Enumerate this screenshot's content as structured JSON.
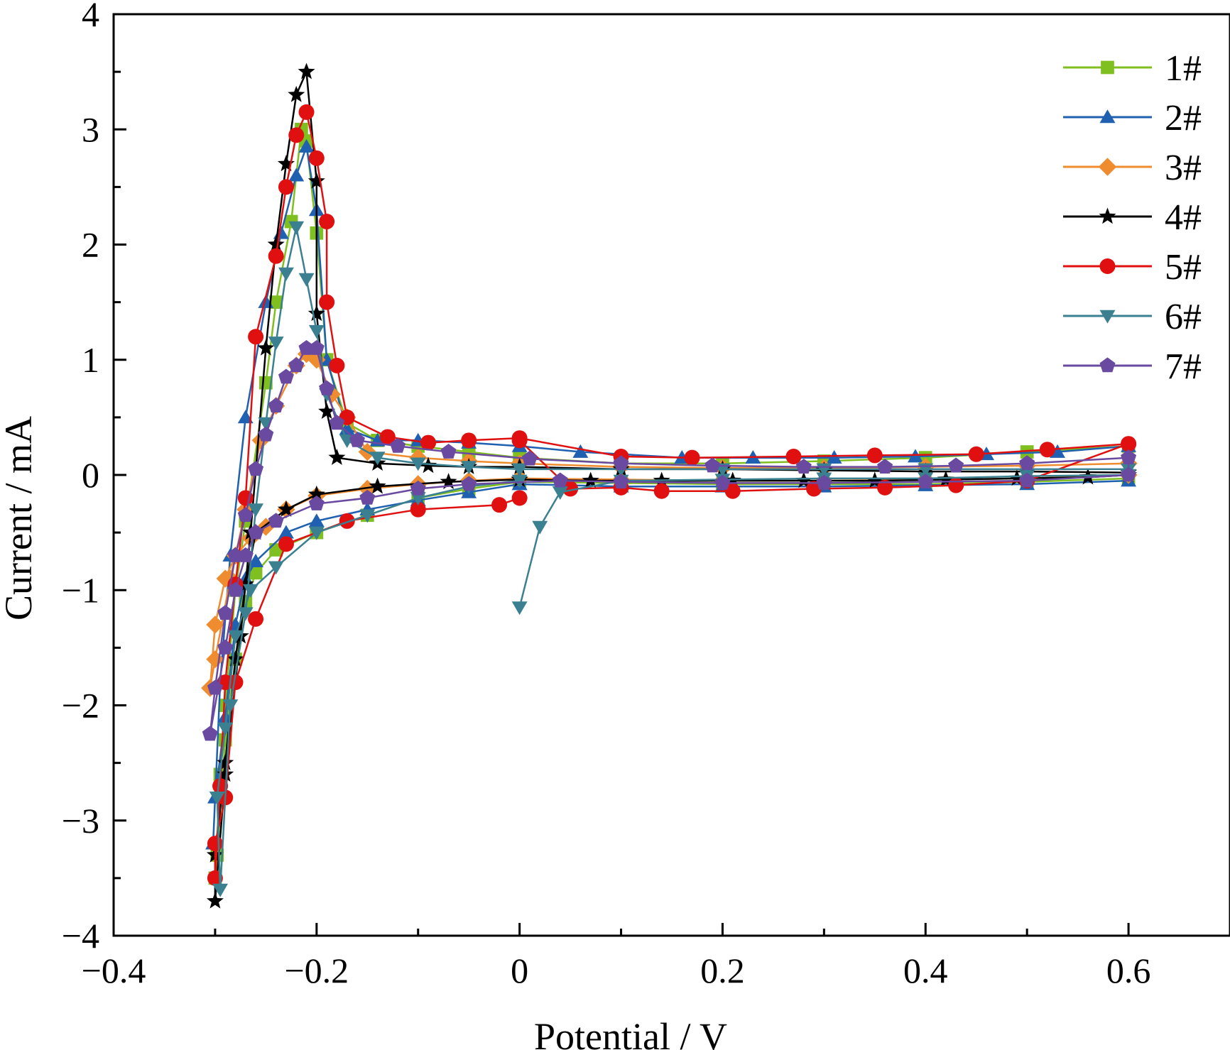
{
  "chart_data": {
    "type": "line",
    "title": "",
    "xlabel": "Potential / V",
    "ylabel": "Current / mA",
    "xlim": [
      -0.4,
      0.7
    ],
    "ylim": [
      -4,
      4
    ],
    "x_ticks": [
      -0.4,
      -0.2,
      0,
      0.2,
      0.4,
      0.6
    ],
    "x_tick_labels": [
      "−0.4",
      "−0.2",
      "0",
      "0.2",
      "0.4",
      "0.6"
    ],
    "y_ticks": [
      -4,
      -3,
      -2,
      -1,
      0,
      1,
      2,
      3,
      4
    ],
    "y_tick_labels": [
      "−4",
      "−3",
      "−2",
      "−1",
      "0",
      "1",
      "2",
      "3",
      "4"
    ],
    "grid": false,
    "legend_position": "top-right",
    "series": [
      {
        "name": "1#",
        "color": "#7fbf1f",
        "marker": "square",
        "x": [
          0.0,
          0.1,
          0.2,
          0.3,
          0.4,
          0.5,
          0.6,
          0.6,
          0.5,
          0.4,
          0.3,
          0.2,
          0.1,
          0.0,
          -0.05,
          -0.1,
          -0.14,
          -0.17,
          -0.19,
          -0.2,
          -0.21,
          -0.215,
          -0.225,
          -0.24,
          -0.25,
          -0.27,
          -0.28,
          -0.29,
          -0.295,
          -0.3,
          -0.298,
          -0.29,
          -0.28,
          -0.27,
          -0.26,
          -0.24,
          -0.2,
          -0.15,
          -0.1,
          -0.05,
          0.0
        ],
        "y": [
          -0.06,
          -0.07,
          -0.08,
          -0.08,
          -0.08,
          -0.06,
          -0.03,
          0.25,
          0.2,
          0.15,
          0.12,
          0.1,
          0.1,
          0.15,
          0.2,
          0.25,
          0.3,
          0.45,
          1.0,
          2.1,
          2.9,
          3.0,
          2.2,
          1.5,
          0.8,
          -0.4,
          -1.0,
          -2.0,
          -2.6,
          -3.5,
          -3.3,
          -2.3,
          -1.6,
          -1.1,
          -0.85,
          -0.65,
          -0.5,
          -0.35,
          -0.2,
          -0.12,
          -0.06
        ]
      },
      {
        "name": "2#",
        "color": "#2060b0",
        "marker": "triangle-up",
        "x": [
          0.0,
          0.1,
          0.2,
          0.3,
          0.4,
          0.5,
          0.6,
          0.6,
          0.53,
          0.46,
          0.39,
          0.31,
          0.23,
          0.16,
          0.06,
          0.0,
          -0.05,
          -0.1,
          -0.14,
          -0.17,
          -0.19,
          -0.2,
          -0.21,
          -0.22,
          -0.235,
          -0.25,
          -0.27,
          -0.285,
          -0.295,
          -0.302,
          -0.3,
          -0.29,
          -0.28,
          -0.27,
          -0.26,
          -0.23,
          -0.2,
          -0.15,
          -0.1,
          -0.05,
          0.0
        ],
        "y": [
          -0.08,
          -0.1,
          -0.1,
          -0.1,
          -0.09,
          -0.08,
          -0.05,
          0.25,
          0.2,
          0.18,
          0.16,
          0.15,
          0.15,
          0.15,
          0.2,
          0.25,
          0.28,
          0.3,
          0.3,
          0.4,
          1.0,
          2.3,
          2.85,
          2.6,
          2.1,
          1.5,
          0.5,
          -0.7,
          -1.8,
          -3.2,
          -2.8,
          -2.1,
          -1.3,
          -0.9,
          -0.75,
          -0.5,
          -0.4,
          -0.3,
          -0.22,
          -0.15,
          -0.08
        ]
      },
      {
        "name": "3#",
        "color": "#f08c30",
        "marker": "diamond",
        "x": [
          0.0,
          0.1,
          0.2,
          0.3,
          0.4,
          0.5,
          0.6,
          0.6,
          0.5,
          0.4,
          0.3,
          0.2,
          0.1,
          0.0,
          -0.05,
          -0.1,
          -0.15,
          -0.17,
          -0.185,
          -0.2,
          -0.21,
          -0.22,
          -0.24,
          -0.255,
          -0.27,
          -0.285,
          -0.3,
          -0.305,
          -0.3,
          -0.29,
          -0.28,
          -0.265,
          -0.25,
          -0.23,
          -0.2,
          -0.15,
          -0.1,
          -0.05,
          0.0
        ],
        "y": [
          -0.03,
          -0.04,
          -0.05,
          -0.05,
          -0.04,
          -0.03,
          0.0,
          0.1,
          0.08,
          0.07,
          0.06,
          0.06,
          0.07,
          0.1,
          0.12,
          0.15,
          0.2,
          0.5,
          0.7,
          1.0,
          1.05,
          0.95,
          0.6,
          0.3,
          -0.3,
          -0.9,
          -1.6,
          -1.85,
          -1.3,
          -0.9,
          -0.7,
          -0.55,
          -0.45,
          -0.3,
          -0.18,
          -0.12,
          -0.08,
          -0.05,
          -0.03
        ]
      },
      {
        "name": "4#",
        "color": "#000000",
        "marker": "star",
        "x": [
          0.0,
          0.07,
          0.14,
          0.21,
          0.28,
          0.35,
          0.42,
          0.49,
          0.56,
          0.6,
          0.6,
          0.5,
          0.4,
          0.3,
          0.2,
          0.1,
          0.0,
          -0.05,
          -0.09,
          -0.14,
          -0.18,
          -0.19,
          -0.2,
          -0.2,
          -0.21,
          -0.22,
          -0.23,
          -0.24,
          -0.25,
          -0.265,
          -0.275,
          -0.29,
          -0.3,
          -0.3,
          -0.29,
          -0.28,
          -0.27,
          -0.26,
          -0.23,
          -0.2,
          -0.14,
          -0.07,
          0.0
        ],
        "y": [
          -0.04,
          -0.05,
          -0.05,
          -0.05,
          -0.05,
          -0.05,
          -0.04,
          -0.03,
          -0.02,
          0.0,
          0.02,
          0.03,
          0.03,
          0.04,
          0.05,
          0.05,
          0.07,
          0.07,
          0.08,
          0.1,
          0.15,
          0.55,
          1.4,
          2.55,
          3.5,
          3.3,
          2.7,
          2.0,
          1.1,
          -0.5,
          -1.4,
          -2.6,
          -3.7,
          -3.3,
          -2.5,
          -1.6,
          -0.95,
          -0.5,
          -0.3,
          -0.17,
          -0.1,
          -0.06,
          -0.04
        ]
      },
      {
        "name": "5#",
        "color": "#e01010",
        "marker": "circle",
        "x": [
          0.0,
          0.05,
          0.1,
          0.14,
          0.21,
          0.29,
          0.36,
          0.43,
          0.5,
          0.6,
          0.6,
          0.52,
          0.45,
          0.35,
          0.27,
          0.17,
          0.1,
          0.0,
          -0.05,
          -0.09,
          -0.13,
          -0.17,
          -0.18,
          -0.19,
          -0.19,
          -0.2,
          -0.21,
          -0.22,
          -0.23,
          -0.24,
          -0.26,
          -0.27,
          -0.28,
          -0.29,
          -0.295,
          -0.3,
          -0.3,
          -0.29,
          -0.28,
          -0.26,
          -0.23,
          -0.17,
          -0.1,
          -0.02,
          0.0
        ],
        "y": [
          0.3,
          -0.12,
          -0.11,
          -0.14,
          -0.14,
          -0.12,
          -0.11,
          -0.09,
          -0.05,
          0.27,
          0.27,
          0.22,
          0.18,
          0.17,
          0.16,
          0.15,
          0.16,
          0.32,
          0.3,
          0.28,
          0.33,
          0.5,
          0.95,
          1.5,
          2.2,
          2.75,
          3.15,
          2.95,
          2.5,
          1.9,
          1.2,
          -0.2,
          -0.95,
          -1.8,
          -2.7,
          -3.5,
          -3.2,
          -2.8,
          -1.8,
          -1.25,
          -0.6,
          -0.4,
          -0.3,
          -0.26,
          -0.2
        ]
      },
      {
        "name": "6#",
        "color": "#3a8090",
        "marker": "triangle-down",
        "x": [
          0.0,
          0.02,
          0.04,
          0.1,
          0.2,
          0.3,
          0.4,
          0.5,
          0.6,
          0.6,
          0.5,
          0.4,
          0.3,
          0.2,
          0.1,
          0.0,
          -0.05,
          -0.1,
          -0.14,
          -0.17,
          -0.19,
          -0.2,
          -0.21,
          -0.22,
          -0.23,
          -0.24,
          -0.25,
          -0.26,
          -0.27,
          -0.285,
          -0.295,
          -0.298,
          -0.29,
          -0.28,
          -0.265,
          -0.24,
          -0.2,
          -0.15,
          -0.1,
          -0.05,
          0.0
        ],
        "y": [
          -1.15,
          -0.45,
          -0.15,
          -0.05,
          -0.04,
          -0.03,
          -0.03,
          -0.01,
          0.0,
          0.05,
          0.05,
          0.05,
          0.05,
          0.05,
          0.05,
          0.05,
          0.07,
          0.1,
          0.15,
          0.3,
          0.7,
          1.25,
          1.7,
          2.15,
          1.75,
          1.15,
          0.45,
          -0.3,
          -1.2,
          -2.0,
          -3.6,
          -2.8,
          -2.2,
          -1.4,
          -1.0,
          -0.8,
          -0.5,
          -0.35,
          -0.2,
          -0.1,
          -0.05
        ]
      },
      {
        "name": "7#",
        "color": "#6a4aa0",
        "marker": "pentagon",
        "x": [
          0.04,
          0.1,
          0.2,
          0.3,
          0.4,
          0.5,
          0.6,
          0.6,
          0.5,
          0.43,
          0.36,
          0.28,
          0.19,
          0.1,
          0.01,
          -0.07,
          -0.12,
          -0.16,
          -0.18,
          -0.19,
          -0.2,
          -0.21,
          -0.22,
          -0.23,
          -0.24,
          -0.25,
          -0.26,
          -0.27,
          -0.28,
          -0.29,
          -0.3,
          -0.305,
          -0.29,
          -0.28,
          -0.27,
          -0.26,
          -0.24,
          -0.2,
          -0.15,
          -0.1,
          -0.05,
          0.04
        ],
        "y": [
          -0.05,
          -0.06,
          -0.07,
          -0.07,
          -0.06,
          -0.05,
          0.0,
          0.15,
          0.1,
          0.08,
          0.07,
          0.07,
          0.08,
          0.1,
          0.14,
          0.2,
          0.25,
          0.3,
          0.45,
          0.75,
          1.1,
          1.1,
          0.95,
          0.85,
          0.6,
          0.35,
          0.05,
          -0.35,
          -0.7,
          -1.2,
          -1.85,
          -2.25,
          -1.5,
          -1.0,
          -0.7,
          -0.5,
          -0.4,
          -0.25,
          -0.2,
          -0.12,
          -0.08,
          -0.05
        ]
      }
    ]
  }
}
